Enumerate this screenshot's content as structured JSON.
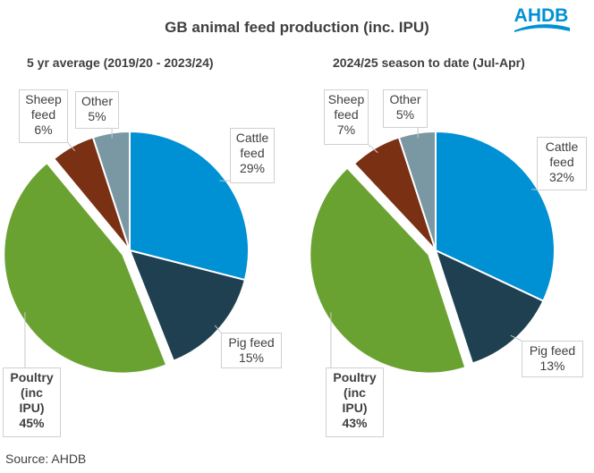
{
  "title": "GB animal feed production (inc. IPU)",
  "source": "Source: AHDB",
  "logo_text": "AHDB",
  "colors": {
    "Cattle feed": "#0090D4",
    "Pig feed": "#1E4050",
    "Poultry (inc IPU)": "#6AA232",
    "Sheep feed": "#7A3012",
    "Other": "#7A97A4"
  },
  "chart_data": [
    {
      "type": "pie",
      "title": "5 yr average (2019/20 - 2023/24)",
      "categories": [
        "Cattle feed",
        "Pig feed",
        "Poultry (inc IPU)",
        "Sheep feed",
        "Other"
      ],
      "values": [
        29,
        15,
        45,
        6,
        5
      ],
      "labels": [
        "Cattle\nfeed\n29%",
        "Pig feed\n15%",
        "Poultry\n(inc\nIPU)\n45%",
        "Sheep\nfeed\n6%",
        "Other\n5%"
      ],
      "exploded": "Poultry (inc IPU)"
    },
    {
      "type": "pie",
      "title": "2024/25 season to date (Jul-Apr)",
      "categories": [
        "Cattle feed",
        "Pig feed",
        "Poultry (inc IPU)",
        "Sheep feed",
        "Other"
      ],
      "values": [
        32,
        13,
        43,
        7,
        5
      ],
      "labels": [
        "Cattle\nfeed\n32%",
        "Pig feed\n13%",
        "Poultry\n(inc\nIPU)\n43%",
        "Sheep\nfeed\n7%",
        "Other\n5%"
      ],
      "exploded": "Poultry (inc IPU)"
    }
  ]
}
